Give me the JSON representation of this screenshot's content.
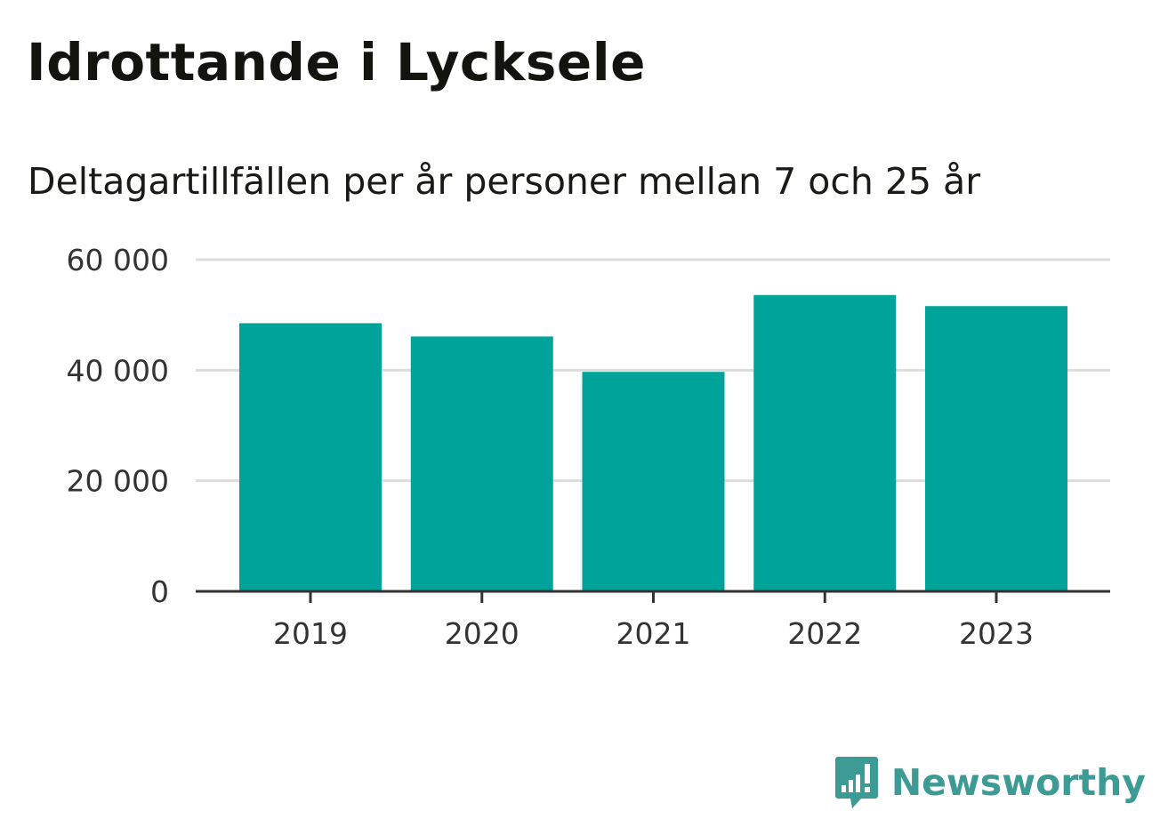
{
  "header": {
    "title": "Idrottande i Lycksele",
    "subtitle": "Deltagartillfällen per år personer mellan 7 och 25 år"
  },
  "chart_data": {
    "type": "bar",
    "categories": [
      "2019",
      "2020",
      "2021",
      "2022",
      "2023"
    ],
    "values": [
      48500,
      46100,
      39700,
      53600,
      51600
    ],
    "ylim": [
      0,
      60000
    ],
    "yticks": [
      0,
      20000,
      40000,
      60000
    ],
    "ytick_labels": [
      "0",
      "20 000",
      "40 000",
      "60 000"
    ],
    "grid": true,
    "bar_color": "#00a39a",
    "grid_color": "#dcdcdc",
    "axis_color": "#333333"
  },
  "branding": {
    "logo_text": "Newsworthy",
    "logo_icon": "newsworthy-logo-icon",
    "logo_color": "#3d9b96"
  }
}
